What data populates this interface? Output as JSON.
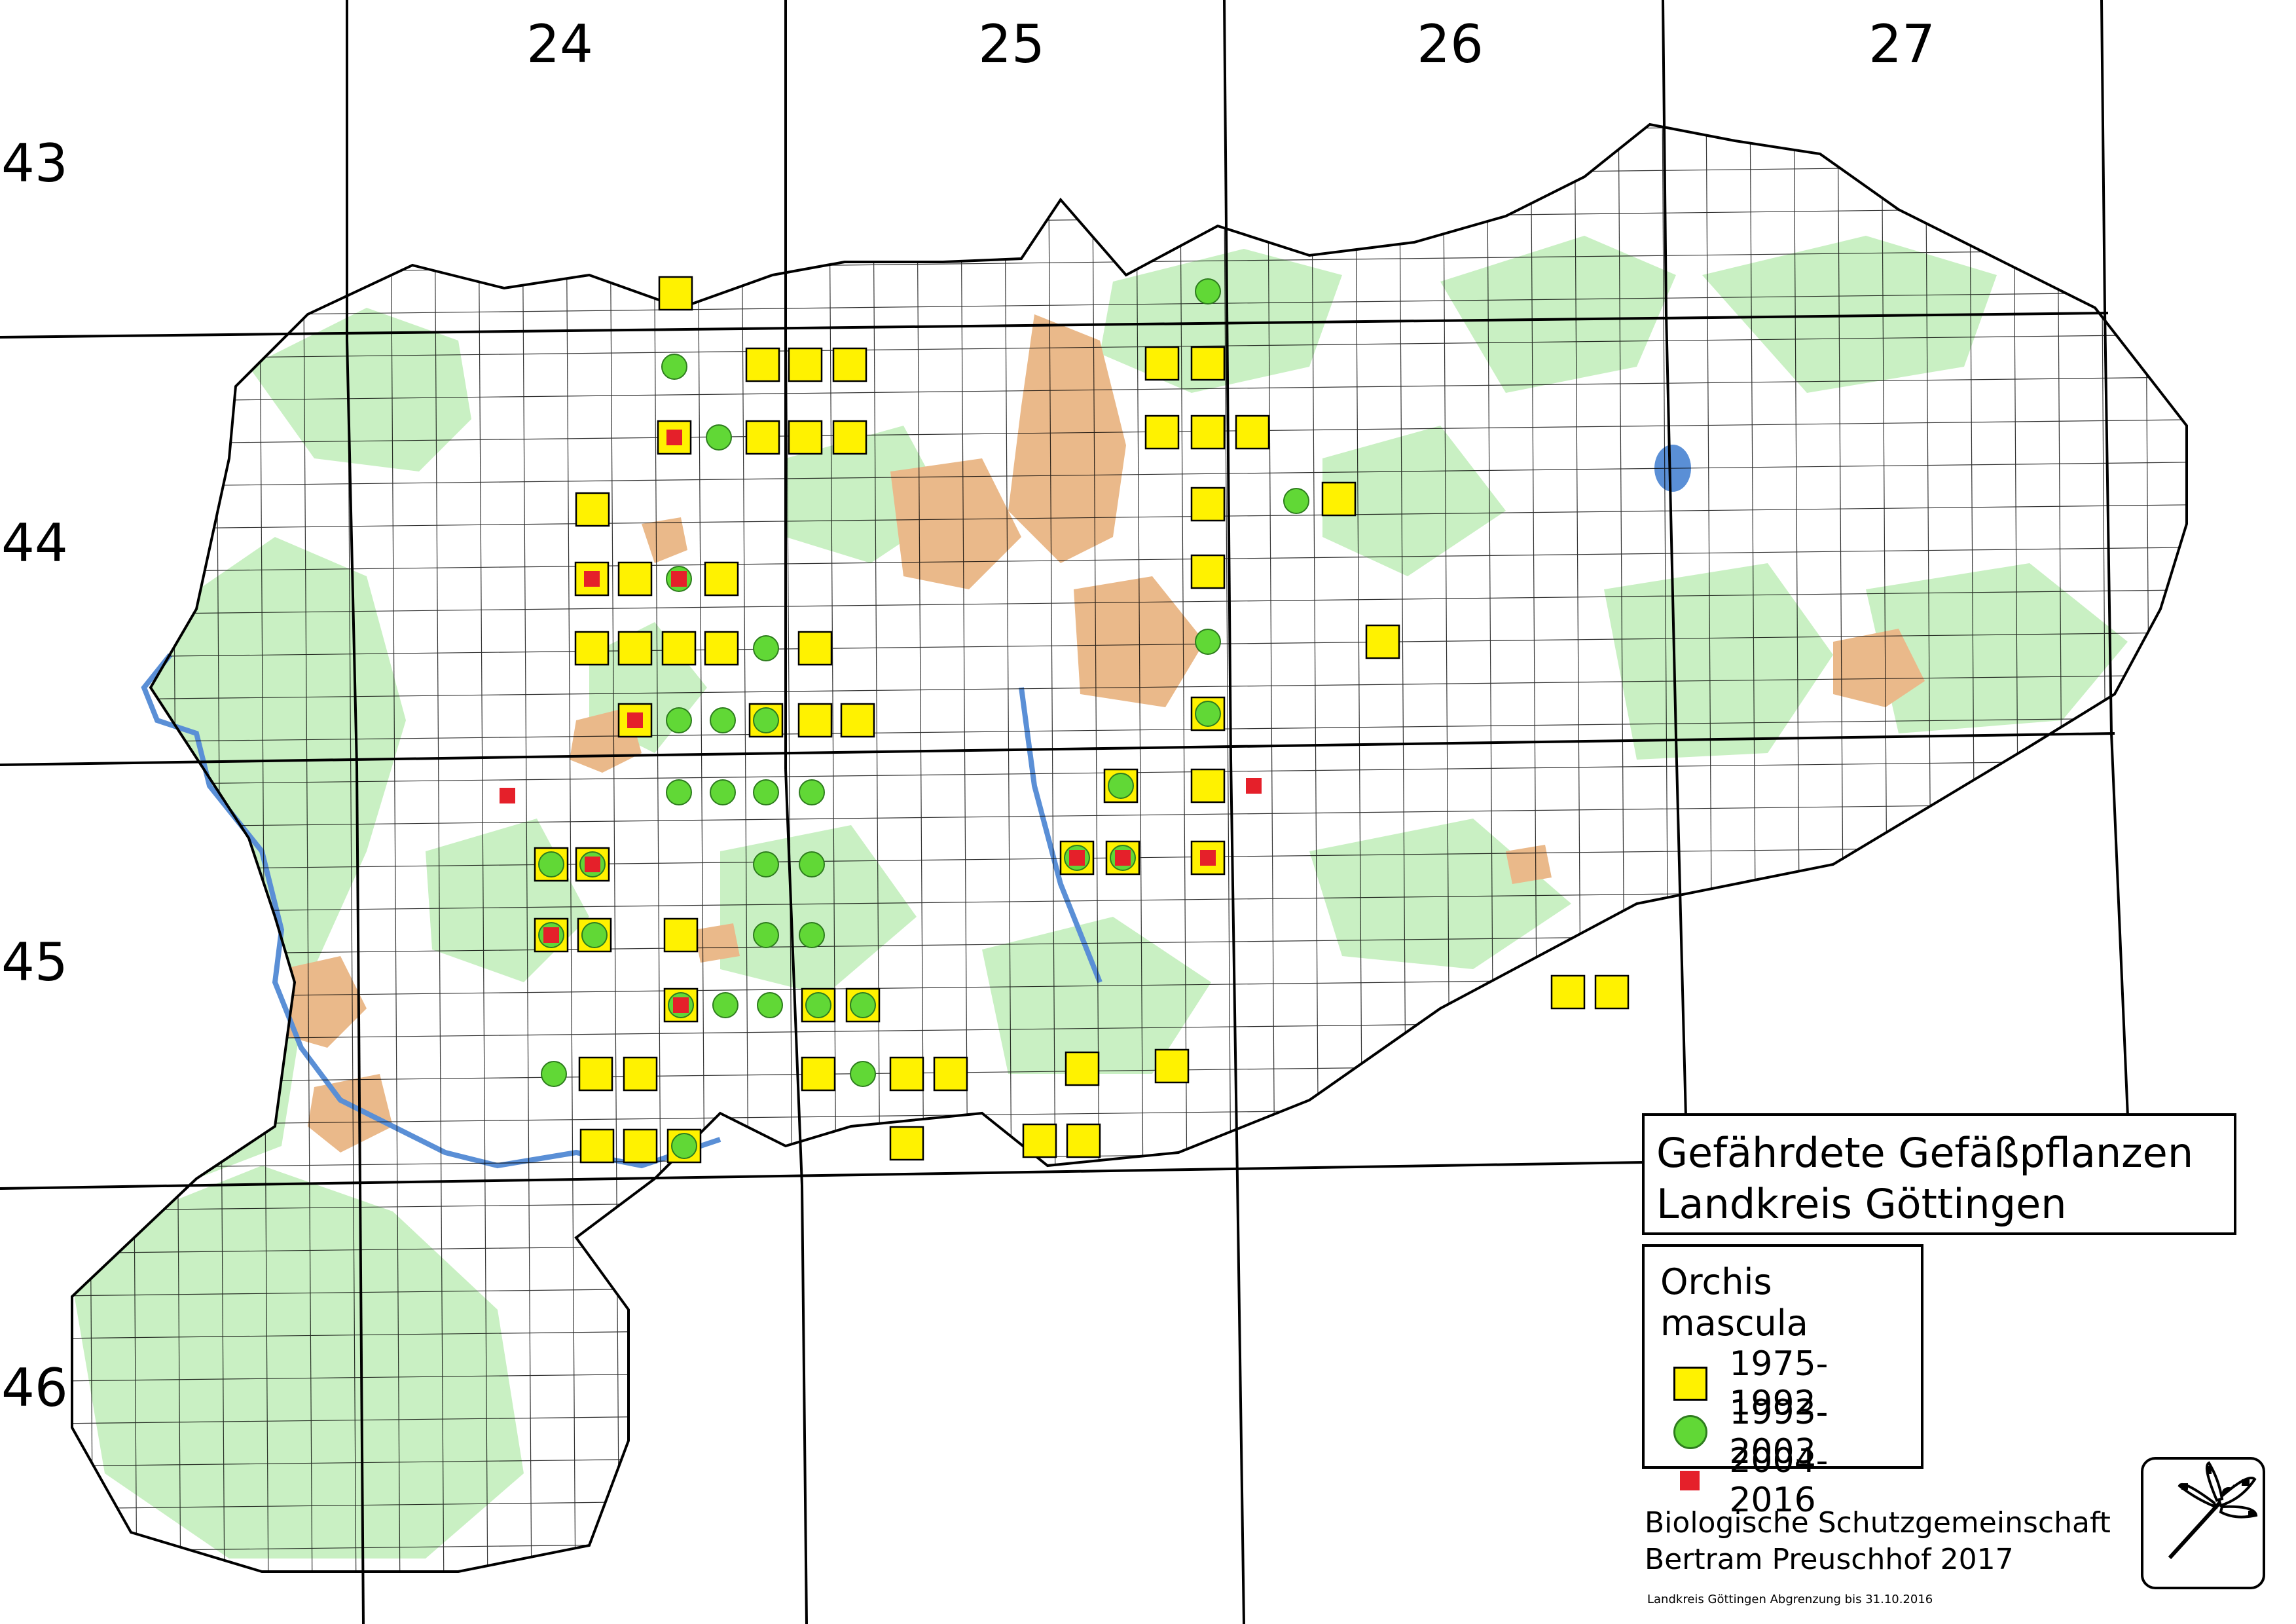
{
  "grid_labels": {
    "columns": [
      "24",
      "25",
      "26",
      "27"
    ],
    "rows": [
      "43",
      "44",
      "45",
      "46"
    ]
  },
  "title": {
    "line1": "Gefährdete Gefäßpflanzen",
    "line2": "Landkreis Göttingen"
  },
  "legend": {
    "species": "Orchis mascula",
    "items": [
      {
        "label": "1975-1992",
        "symbol": "yellow-square",
        "color": "#fff200"
      },
      {
        "label": "1993-2003",
        "symbol": "green-circle",
        "color": "#61d836"
      },
      {
        "label": "2004-2016",
        "symbol": "red-square",
        "color": "#e5202a"
      }
    ]
  },
  "credit": {
    "line1": "Biologische Schutzgemeinschaft",
    "line2": "Bertram Preuschhof 2017"
  },
  "boundary_note": "Landkreis Göttingen Abgrenzung bis 31.10.2016",
  "colors": {
    "forest": "#c9f0c3",
    "settlement": "#eab98a",
    "water": "#5a8fd6",
    "road": "#e79a8a",
    "grid": "#000000"
  },
  "icons": {
    "logo": "dragonfly-icon"
  }
}
